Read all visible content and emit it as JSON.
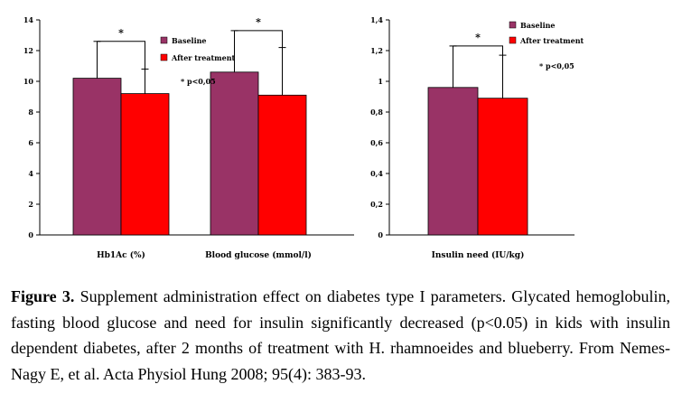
{
  "chart_data": [
    {
      "type": "bar",
      "categories": [
        "Hb1Ac (%)",
        "Blood glucose (mmol/l)"
      ],
      "series": [
        {
          "name": "Baseline",
          "values": [
            10.2,
            10.6
          ],
          "error_upper": [
            12.6,
            13.3
          ]
        },
        {
          "name": "After treatment",
          "values": [
            9.2,
            9.1
          ],
          "error_upper": [
            10.8,
            12.2
          ]
        }
      ],
      "ylim": [
        0,
        14
      ],
      "yticks": [
        "0",
        "2",
        "4",
        "6",
        "8",
        "10",
        "12",
        "14"
      ],
      "significance_marker": "*",
      "annotation": "* p<0,05",
      "legend_position": "top-right",
      "colors": {
        "Baseline": "#993366",
        "After treatment": "#ff0000"
      }
    },
    {
      "type": "bar",
      "categories": [
        "Insulin need (IU/kg)"
      ],
      "series": [
        {
          "name": "Baseline",
          "values": [
            0.96
          ],
          "error_upper": [
            1.23
          ]
        },
        {
          "name": "After treatment",
          "values": [
            0.89
          ],
          "error_upper": [
            1.17
          ]
        }
      ],
      "ylim": [
        0,
        1.4
      ],
      "yticks": [
        "0",
        "0,2",
        "0,4",
        "0,6",
        "0,8",
        "1",
        "1,2",
        "1,4"
      ],
      "significance_marker": "*",
      "annotation": "* p<0,05",
      "legend_position": "top-right",
      "colors": {
        "Baseline": "#993366",
        "After treatment": "#ff0000"
      }
    }
  ],
  "caption": {
    "label": "Figure 3.",
    "text": " Supplement administration effect on diabetes type I parameters. Glycated hemoglobulin, fasting blood glucose and need for insulin significantly decreased (p<0.05) in kids with insulin dependent diabetes, after 2 months of treatment with H. rhamnoeides and blueberry. From Nemes-Nagy E, et al. Acta Physiol Hung 2008; 95(4): 383-93."
  }
}
